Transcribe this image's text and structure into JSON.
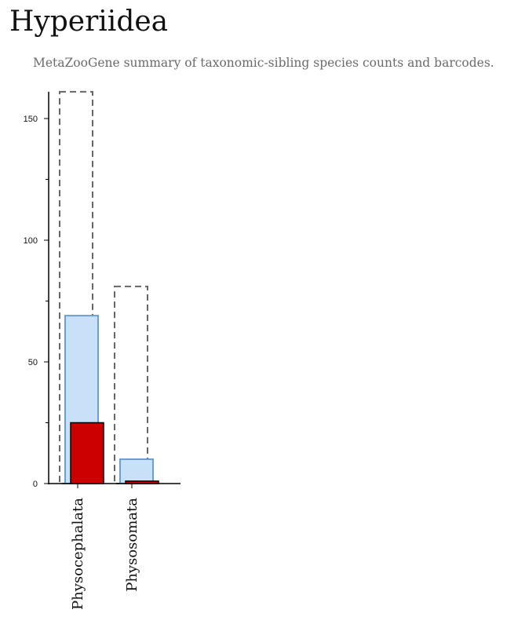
{
  "title": "Hyperiidea",
  "subtitle": "MetaZooGene summary of taxonomic-sibling species counts and barcodes.",
  "chart_data": {
    "type": "bar",
    "categories": [
      "Physocephalata",
      "Physosomata"
    ],
    "series": [
      {
        "values": [
          161,
          81
        ],
        "style": "dashed-outline",
        "color": "#666666"
      },
      {
        "values": [
          69,
          10
        ],
        "style": "filled",
        "color": "#c8e1f9",
        "stroke": "#6a9fd0"
      },
      {
        "values": [
          25,
          1
        ],
        "style": "filled",
        "color": "#cc0000",
        "stroke": "#000000"
      }
    ],
    "ylim": [
      0,
      161
    ],
    "yticks": [
      0,
      50,
      100,
      150
    ],
    "xlabel": "",
    "ylabel": "",
    "grid": false,
    "legend": "none"
  }
}
